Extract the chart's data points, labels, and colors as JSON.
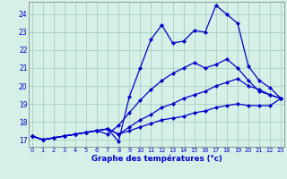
{
  "xlabel": "Graphe des températures (°c)",
  "bg_color": "#d6f0e8",
  "grid_color": "#a0c8b8",
  "line_color": "#0000cc",
  "xticks": [
    0,
    1,
    2,
    3,
    4,
    5,
    6,
    7,
    8,
    9,
    10,
    11,
    12,
    13,
    14,
    15,
    16,
    17,
    18,
    19,
    20,
    21,
    22,
    23
  ],
  "yticks": [
    17,
    18,
    19,
    20,
    21,
    22,
    23,
    24
  ],
  "xlim": [
    -0.3,
    23.3
  ],
  "ylim": [
    16.6,
    24.7
  ],
  "series": [
    {
      "x": [
        0,
        1,
        2,
        3,
        4,
        5,
        6,
        7,
        8,
        9,
        10,
        11,
        12,
        13,
        14,
        15,
        16,
        17,
        18,
        19,
        20,
        21,
        22,
        23
      ],
      "y": [
        17.2,
        17.0,
        17.1,
        17.2,
        17.3,
        17.4,
        17.5,
        17.6,
        16.9,
        19.4,
        21.0,
        22.6,
        23.4,
        22.4,
        22.5,
        23.1,
        23.0,
        24.5,
        24.0,
        23.5,
        21.1,
        20.3,
        19.9,
        19.3
      ]
    },
    {
      "x": [
        0,
        1,
        2,
        3,
        4,
        5,
        6,
        7,
        8,
        9,
        10,
        11,
        12,
        13,
        14,
        15,
        16,
        17,
        18,
        19,
        20,
        21,
        22,
        23
      ],
      "y": [
        17.2,
        17.0,
        17.1,
        17.2,
        17.3,
        17.4,
        17.5,
        17.3,
        17.8,
        18.5,
        19.2,
        19.8,
        20.3,
        20.7,
        21.0,
        21.3,
        21.0,
        21.2,
        21.5,
        21.0,
        20.3,
        19.7,
        19.5,
        19.3
      ]
    },
    {
      "x": [
        0,
        1,
        2,
        3,
        4,
        5,
        6,
        7,
        8,
        9,
        10,
        11,
        12,
        13,
        14,
        15,
        16,
        17,
        18,
        19,
        20,
        21,
        22,
        23
      ],
      "y": [
        17.2,
        17.0,
        17.1,
        17.2,
        17.3,
        17.4,
        17.5,
        17.6,
        17.3,
        17.7,
        18.1,
        18.4,
        18.8,
        19.0,
        19.3,
        19.5,
        19.7,
        20.0,
        20.2,
        20.4,
        20.0,
        19.8,
        19.5,
        19.3
      ]
    },
    {
      "x": [
        0,
        1,
        2,
        3,
        4,
        5,
        6,
        7,
        8,
        9,
        10,
        11,
        12,
        13,
        14,
        15,
        16,
        17,
        18,
        19,
        20,
        21,
        22,
        23
      ],
      "y": [
        17.2,
        17.0,
        17.1,
        17.2,
        17.3,
        17.4,
        17.5,
        17.6,
        17.3,
        17.5,
        17.7,
        17.9,
        18.1,
        18.2,
        18.3,
        18.5,
        18.6,
        18.8,
        18.9,
        19.0,
        18.9,
        18.9,
        18.9,
        19.3
      ]
    }
  ]
}
